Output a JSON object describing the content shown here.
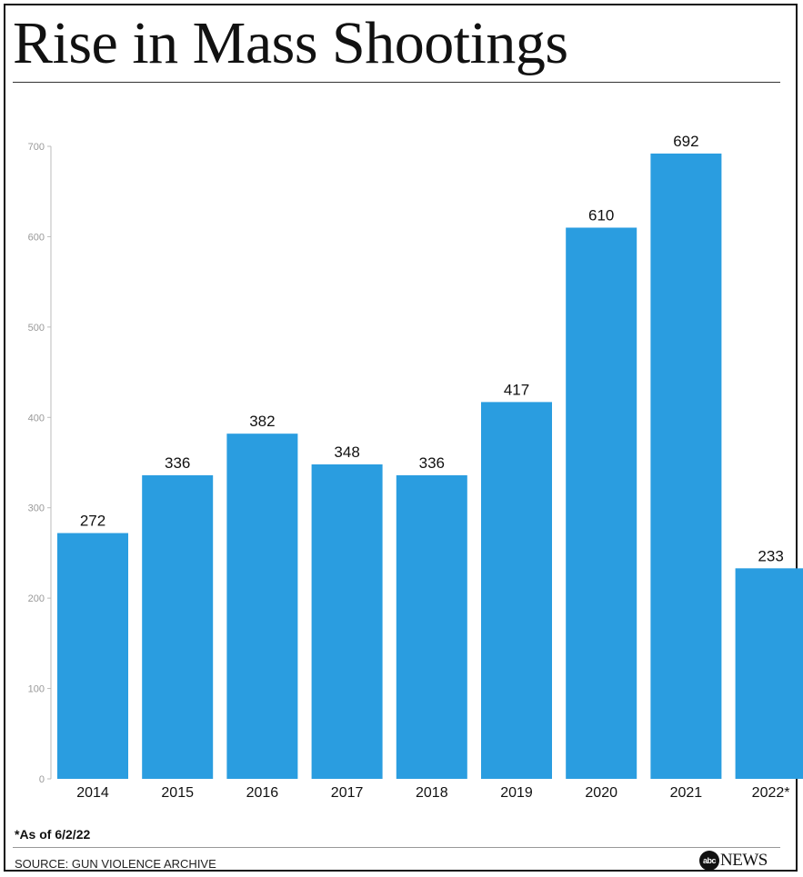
{
  "chart_data": {
    "type": "bar",
    "title": "Rise in Mass Shootings",
    "categories": [
      "2014",
      "2015",
      "2016",
      "2017",
      "2018",
      "2019",
      "2020",
      "2021",
      "2022*"
    ],
    "values": [
      272,
      336,
      382,
      348,
      336,
      417,
      610,
      692,
      233
    ],
    "data_labels": [
      "272",
      "336",
      "382",
      "348",
      "336",
      "417",
      "610",
      "692",
      "233"
    ],
    "yticks": [
      0,
      100,
      200,
      300,
      400,
      500,
      600,
      700
    ],
    "ylim": [
      0,
      700
    ],
    "xlabel": "",
    "ylabel": "",
    "grid": false,
    "legend": "none",
    "bar_color": "#2a9de0"
  },
  "footnote": "*As of 6/2/22",
  "source": "SOURCE: GUN VIOLENCE ARCHIVE",
  "logo": {
    "mark": "abc",
    "text": "NEWS"
  }
}
